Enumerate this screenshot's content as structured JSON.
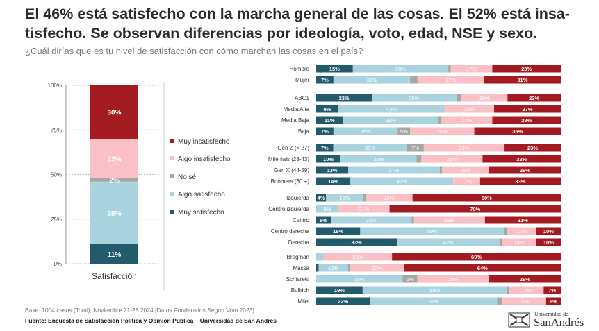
{
  "title": "El 46% está satisfecho con la marcha general de las cosas. El 52% está insa-tisfecho. Se observan diferencias por ideología, voto, edad, NSE y sexo.",
  "subtitle": "¿Cuál dirías que es tu nivel de satisfacción con cómo marchan las cosas en el país?",
  "footer": {
    "base": "Base: 1004 casos (Total), Noviembre 21-28 2024 [Datos Ponderados Según Voto 2023]",
    "source": "Fuente: Encuesta de Satisfacción Política y Opinión Pública – Universidad de San Andrés"
  },
  "logo": {
    "small": "Universidad de",
    "big": "SanAndrés"
  },
  "colors": {
    "muy_satisfecho": "#225b6c",
    "algo_satisfecho": "#a9d3de",
    "no_se": "#a6a6a6",
    "algo_insatisfecho": "#fbc0c6",
    "muy_insatisfecho": "#a31b20"
  },
  "chart_data": [
    {
      "type": "bar",
      "stacked": true,
      "categories": [
        "Satisfacción"
      ],
      "ylim": [
        0,
        100
      ],
      "yticks": [
        "0%",
        "25%",
        "50%",
        "75%",
        "100%"
      ],
      "grid": true,
      "legend": "right",
      "series": [
        {
          "name": "Muy satisfecho",
          "key": "muy_satisfecho",
          "values": [
            11
          ],
          "labels": [
            "11%"
          ]
        },
        {
          "name": "Algo satisfecho",
          "key": "algo_satisfecho",
          "values": [
            35
          ],
          "labels": [
            "35%"
          ]
        },
        {
          "name": "No sé",
          "key": "no_se",
          "values": [
            2
          ],
          "labels": [
            "2%"
          ]
        },
        {
          "name": "Algo insatisfecho",
          "key": "algo_insatisfecho",
          "values": [
            22
          ],
          "labels": [
            "22%"
          ]
        },
        {
          "name": "Muy insatisfecho",
          "key": "muy_insatisfecho",
          "values": [
            30
          ],
          "labels": [
            "30%"
          ]
        }
      ],
      "legend_order": [
        "Muy insatisfecho",
        "Algo insatisfecho",
        "No sé",
        "Algo satisfecho",
        "Muy satisfecho"
      ]
    },
    {
      "type": "bar",
      "orientation": "horizontal",
      "stacked": true,
      "series_order": [
        "muy_satisfecho",
        "algo_satisfecho",
        "no_se",
        "algo_insatisfecho",
        "muy_insatisfecho"
      ],
      "groups": [
        {
          "rows": [
            {
              "label": "Hombre",
              "values": [
                15,
                39,
                1,
                17,
                28
              ],
              "labels": [
                "15%",
                "39%",
                "1%",
                "17%",
                "28%"
              ]
            },
            {
              "label": "Mujer",
              "values": [
                7,
                31,
                3,
                27,
                31
              ],
              "labels": [
                "7%",
                "31%",
                "3%",
                "27%",
                "31%"
              ]
            }
          ]
        },
        {
          "rows": [
            {
              "label": "ABC1",
              "values": [
                23,
                35,
                2,
                19,
                22
              ],
              "labels": [
                "23%",
                "35%",
                "2%",
                "19%",
                "22%"
              ]
            },
            {
              "label": "Media Alta",
              "values": [
                9,
                43,
                0,
                20,
                27
              ],
              "labels": [
                "9%",
                "43%",
                "0%",
                "20%",
                "27%"
              ]
            },
            {
              "label": "Media Baja",
              "values": [
                11,
                39,
                1,
                21,
                28
              ],
              "labels": [
                "11%",
                "39%",
                "1%",
                "21%",
                "28%"
              ]
            },
            {
              "label": "Baja",
              "values": [
                7,
                26,
                5,
                26,
                35
              ],
              "labels": [
                "7%",
                "26%",
                "5%",
                "26%",
                "35%"
              ]
            }
          ]
        },
        {
          "rows": [
            {
              "label": "Gen Z (< 27)",
              "values": [
                7,
                30,
                7,
                33,
                23
              ],
              "labels": [
                "7%",
                "30%",
                "7%",
                "33%",
                "23%"
              ]
            },
            {
              "label": "Milenials (28-43)",
              "values": [
                10,
                31,
                2,
                25,
                32
              ],
              "labels": [
                "10%",
                "31%",
                "2%",
                "25%",
                "32%"
              ]
            },
            {
              "label": "Gen X (44-59)",
              "values": [
                13,
                37,
                1,
                19,
                29
              ],
              "labels": [
                "13%",
                "37%",
                "1%",
                "19%",
                "29%"
              ]
            },
            {
              "label": "Boomers (60 +)",
              "values": [
                14,
                42,
                0,
                11,
                33
              ],
              "labels": [
                "14%",
                "42%",
                "0%",
                "11%",
                "33%"
              ]
            }
          ]
        },
        {
          "rows": [
            {
              "label": "Izquierda",
              "values": [
                4,
                15,
                1,
                19,
                60
              ],
              "labels": [
                "4%",
                "15%",
                "1%",
                "19%",
                "60%"
              ]
            },
            {
              "label": "Centro izquierda",
              "values": [
                0,
                9,
                0,
                21,
                70
              ],
              "labels": [
                "0%",
                "9%",
                "0%",
                "21%",
                "70%"
              ]
            },
            {
              "label": "Centro",
              "values": [
                6,
                33,
                1,
                29,
                31
              ],
              "labels": [
                "6%",
                "33%",
                "1%",
                "29%",
                "31%"
              ]
            },
            {
              "label": "Centro derecha",
              "values": [
                18,
                59,
                1,
                12,
                10
              ],
              "labels": [
                "18%",
                "59%",
                "1%",
                "12%",
                "10%"
              ]
            },
            {
              "label": "Derecha",
              "values": [
                33,
                42,
                1,
                14,
                10
              ],
              "labels": [
                "33%",
                "42%",
                "1%",
                "14%",
                "10%"
              ]
            }
          ]
        },
        {
          "rows": [
            {
              "label": "Bregman",
              "values": [
                0,
                3,
                0,
                28,
                69
              ],
              "labels": [
                "0%",
                "3%",
                "",
                "28%",
                "69%"
              ]
            },
            {
              "label": "Massa",
              "values": [
                1,
                12,
                1,
                22,
                64
              ],
              "labels": [
                "1%",
                "12%",
                "1%",
                "22%",
                "64%"
              ]
            },
            {
              "label": "Schiaretti",
              "values": [
                0,
                35,
                6,
                29,
                29
              ],
              "labels": [
                "0%",
                "35%",
                "6%",
                "29%",
                "29%"
              ]
            },
            {
              "label": "Bullrich",
              "values": [
                19,
                59,
                1,
                14,
                7
              ],
              "labels": [
                "19%",
                "59%",
                "1%",
                "14%",
                "7%"
              ]
            },
            {
              "label": "Milei",
              "values": [
                22,
                52,
                2,
                18,
                6
              ],
              "labels": [
                "22%",
                "52%",
                "2%",
                "18%",
                "6%"
              ]
            }
          ]
        }
      ]
    }
  ]
}
